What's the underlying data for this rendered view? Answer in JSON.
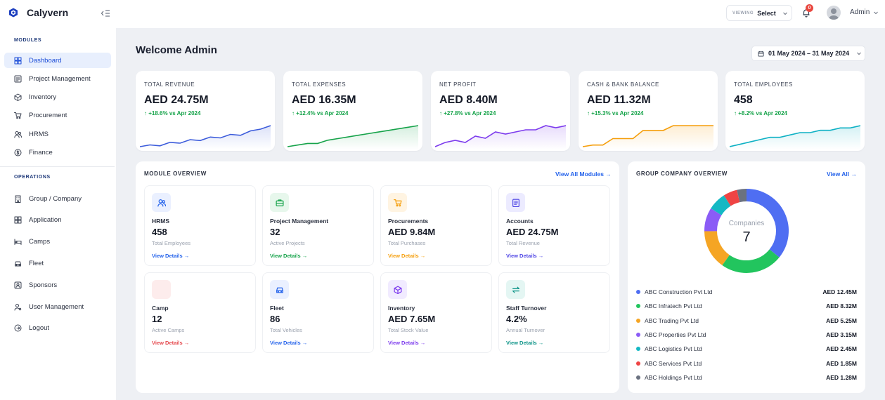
{
  "app": {
    "name": "Calyvern"
  },
  "topbar": {
    "viewing_label": "VIEWING",
    "viewing_value": "Select",
    "notification_count": "0",
    "user_name": "Admin"
  },
  "sidebar": {
    "modules_label": "MODULES",
    "modules": [
      {
        "label": "Dashboard",
        "icon": "grid-icon"
      },
      {
        "label": "Project Management",
        "icon": "project-icon"
      },
      {
        "label": "Inventory",
        "icon": "box-icon"
      },
      {
        "label": "Procurement",
        "icon": "cart-icon"
      },
      {
        "label": "HRMS",
        "icon": "users-icon"
      },
      {
        "label": "Finance",
        "icon": "finance-icon"
      }
    ],
    "operations_label": "OPERATIONS",
    "operations": [
      {
        "label": "Group / Company",
        "icon": "building-icon"
      },
      {
        "label": "Application",
        "icon": "apps-icon"
      },
      {
        "label": "Camps",
        "icon": "bed-icon"
      },
      {
        "label": "Fleet",
        "icon": "car-icon"
      },
      {
        "label": "Sponsors",
        "icon": "badge-icon"
      },
      {
        "label": "User Management",
        "icon": "user-gear-icon"
      },
      {
        "label": "Logout",
        "icon": "logout-icon"
      }
    ]
  },
  "main": {
    "title": "Welcome Admin",
    "date_range": "01 May 2024 – 31 May 2024"
  },
  "kpis": [
    {
      "label": "TOTAL REVENUE",
      "value": "AED 24.75M",
      "delta": "+18.6% vs Apr 2024",
      "color": "#3b5bdb",
      "trend": [
        10,
        12,
        11,
        15,
        14,
        18,
        17,
        21,
        20,
        24,
        23,
        28,
        30,
        34
      ]
    },
    {
      "label": "TOTAL EXPENSES",
      "value": "AED 16.35M",
      "delta": "+12.4% vs Apr 2024",
      "color": "#16a34a",
      "trend": [
        8,
        9,
        10,
        10,
        12,
        13,
        14,
        15,
        16,
        17,
        18,
        19,
        20,
        21
      ]
    },
    {
      "label": "NET PROFIT",
      "value": "AED 8.40M",
      "delta": "+27.8% vs Apr 2024",
      "color": "#7c3aed",
      "trend": [
        6,
        8,
        9,
        8,
        11,
        10,
        13,
        12,
        13,
        14,
        14,
        16,
        15,
        16
      ]
    },
    {
      "label": "CASH & BANK BALANCE",
      "value": "AED 11.32M",
      "delta": "+15.3% vs Apr 2024",
      "color": "#f59e0b",
      "trend": [
        4,
        5,
        5,
        9,
        9,
        9,
        14,
        14,
        14,
        17,
        17,
        17,
        17,
        17
      ]
    },
    {
      "label": "TOTAL EMPLOYEES",
      "value": "458",
      "delta": "+8.2% vs Apr 2024",
      "color": "#0eb1c4",
      "trend": [
        8,
        9,
        10,
        11,
        12,
        12,
        13,
        14,
        14,
        15,
        15,
        16,
        16,
        17
      ]
    }
  ],
  "module_overview": {
    "title": "MODULE OVERVIEW",
    "link": "View All Modules →",
    "modules": [
      {
        "name": "HRMS",
        "value": "458",
        "sub": "Total Employees",
        "link": "View Details →",
        "color": "#2563eb",
        "bg": "#eaf0ff",
        "icon": "users-icon"
      },
      {
        "name": "Project Management",
        "value": "32",
        "sub": "Active Projects",
        "link": "View Details →",
        "color": "#16a34a",
        "bg": "#e7f7ec",
        "icon": "briefcase-icon"
      },
      {
        "name": "Procurements",
        "value": "AED 9.84M",
        "sub": "Total Purchases",
        "link": "View Details →",
        "color": "#f59e0b",
        "bg": "#fff4e2",
        "icon": "cart-icon"
      },
      {
        "name": "Accounts",
        "value": "AED 24.75M",
        "sub": "Total Revenue",
        "link": "View Details →",
        "color": "#4f46e5",
        "bg": "#ecebff",
        "icon": "ledger-icon"
      },
      {
        "name": "Camp",
        "value": "12",
        "sub": "Active Camps",
        "link": "View Details →",
        "color": "#e5484d",
        "bg": "#fdecec",
        "icon": "tent-icon"
      },
      {
        "name": "Fleet",
        "value": "86",
        "sub": "Total Vehicles",
        "link": "View Details →",
        "color": "#2563eb",
        "bg": "#eaf0ff",
        "icon": "car-icon"
      },
      {
        "name": "Inventory",
        "value": "AED 7.65M",
        "sub": "Total Stock Value",
        "link": "View Details →",
        "color": "#7c3aed",
        "bg": "#f1ebff",
        "icon": "box-icon"
      },
      {
        "name": "Staff Turnover",
        "value": "4.2%",
        "sub": "Annual Turnover",
        "link": "View Details →",
        "color": "#0d9488",
        "bg": "#e4f6f3",
        "icon": "swap-icon"
      }
    ]
  },
  "group_overview": {
    "title": "GROUP COMPANY OVERVIEW",
    "link": "View All →",
    "center_label": "Companies",
    "center_value": "7",
    "companies": [
      {
        "name": "ABC Construction Pvt Ltd",
        "value": "AED 12.45M",
        "amount": 12.45,
        "color": "#4f6ef2"
      },
      {
        "name": "ABC Infratech Pvt Ltd",
        "value": "AED 8.32M",
        "amount": 8.32,
        "color": "#22c55e"
      },
      {
        "name": "ABC Trading Pvt Ltd",
        "value": "AED 5.25M",
        "amount": 5.25,
        "color": "#f5a524"
      },
      {
        "name": "ABC Properties Pvt Ltd",
        "value": "AED 3.15M",
        "amount": 3.15,
        "color": "#8b5cf6"
      },
      {
        "name": "ABC Logistics Pvt Ltd",
        "value": "AED 2.45M",
        "amount": 2.45,
        "color": "#14b8c4"
      },
      {
        "name": "ABC Services Pvt Ltd",
        "value": "AED 1.85M",
        "amount": 1.85,
        "color": "#ef4444"
      },
      {
        "name": "ABC Holdings Pvt Ltd",
        "value": "AED 1.28M",
        "amount": 1.28,
        "color": "#6b7280"
      }
    ]
  }
}
